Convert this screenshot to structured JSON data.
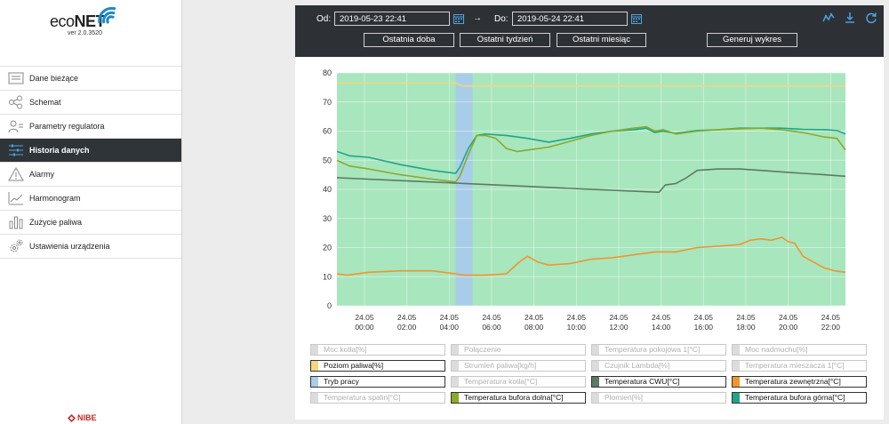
{
  "app": {
    "logo_prefix": "eco",
    "logo_suffix": "NET",
    "version": "ver 2.0.3520",
    "brand": "NIBE"
  },
  "sidebar": {
    "items": [
      {
        "label": "Dane bieżące",
        "icon": "list-icon",
        "active": false
      },
      {
        "label": "Schemat",
        "icon": "schema-icon",
        "active": false
      },
      {
        "label": "Parametry regulatora",
        "icon": "users-icon",
        "active": false
      },
      {
        "label": "Historia danych",
        "icon": "sliders-icon",
        "active": true
      },
      {
        "label": "Alarmy",
        "icon": "warning-icon",
        "active": false
      },
      {
        "label": "Harmonogram",
        "icon": "chart-line-icon",
        "active": false
      },
      {
        "label": "Zużycie paliwa",
        "icon": "bar-chart-icon",
        "active": false
      },
      {
        "label": "Ustawienia urządzenia",
        "icon": "gears-icon",
        "active": false
      }
    ]
  },
  "toolbar": {
    "from_label": "Od:",
    "from_value": "2019-05-23 22:41",
    "arrow": "→",
    "to_label": "Do:",
    "to_value": "2019-05-24 22:41",
    "btn_day": "Ostatnia doba",
    "btn_week": "Ostatni tydzień",
    "btn_month": "Ostatni miesiąc",
    "btn_generate": "Generuj wykres"
  },
  "legend": [
    {
      "label": "Moc kotła[%]",
      "on": false,
      "color": "#dcdcdc"
    },
    {
      "label": "Połączenie",
      "on": false,
      "color": "#dcdcdc"
    },
    {
      "label": "Temperatura pokojowa 1[°C]",
      "on": false,
      "color": "#dcdcdc"
    },
    {
      "label": "Moc nadmuchu[%]",
      "on": false,
      "color": "#dcdcdc"
    },
    {
      "label": "Poziom paliwa[%]",
      "on": true,
      "color": "#f5d67a"
    },
    {
      "label": "Strumień paliwa[kg/h]",
      "on": false,
      "color": "#dcdcdc"
    },
    {
      "label": "Czujnik Lambda[%]",
      "on": false,
      "color": "#dcdcdc"
    },
    {
      "label": "Temperatura mieszacza 1[°C]",
      "on": false,
      "color": "#dcdcdc"
    },
    {
      "label": "Tryb pracy",
      "on": true,
      "color": "#a8cde8"
    },
    {
      "label": "Temperatura kotła[°C]",
      "on": false,
      "color": "#dcdcdc"
    },
    {
      "label": "Temperatura CWU[°C]",
      "on": true,
      "color": "#5d7a63"
    },
    {
      "label": "Temperatura zewnętrzna[°C]",
      "on": true,
      "color": "#f0952c"
    },
    {
      "label": "Temperatura spalin[°C]",
      "on": false,
      "color": "#dcdcdc"
    },
    {
      "label": "Temperatura bufora dolna[°C]",
      "on": true,
      "color": "#8aaa2a"
    },
    {
      "label": "Płomień[%]",
      "on": false,
      "color": "#dcdcdc"
    },
    {
      "label": "Temperatura bufora górna[°C]",
      "on": true,
      "color": "#1fa58a"
    }
  ],
  "chart_data": {
    "type": "line",
    "x_unit": "hours since 2019-05-23 22:41",
    "xlim": [
      0,
      24
    ],
    "ylim": [
      0,
      80
    ],
    "y_ticks": [
      0,
      10,
      20,
      30,
      40,
      50,
      60,
      70,
      80
    ],
    "x_ticks": [
      {
        "x": 1.3,
        "l1": "24.05",
        "l2": "00:00"
      },
      {
        "x": 3.3,
        "l1": "24.05",
        "l2": "02:00"
      },
      {
        "x": 5.3,
        "l1": "24.05",
        "l2": "04:00"
      },
      {
        "x": 7.3,
        "l1": "24.05",
        "l2": "06:00"
      },
      {
        "x": 9.3,
        "l1": "24.05",
        "l2": "08:00"
      },
      {
        "x": 11.3,
        "l1": "24.05",
        "l2": "10:00"
      },
      {
        "x": 13.3,
        "l1": "24.05",
        "l2": "12:00"
      },
      {
        "x": 15.3,
        "l1": "24.05",
        "l2": "14:00"
      },
      {
        "x": 17.3,
        "l1": "24.05",
        "l2": "16:00"
      },
      {
        "x": 19.3,
        "l1": "24.05",
        "l2": "18:00"
      },
      {
        "x": 21.3,
        "l1": "24.05",
        "l2": "20:00"
      },
      {
        "x": 23.3,
        "l1": "24.05",
        "l2": "22:00"
      }
    ],
    "areas": [
      {
        "name": "Tryb pracy",
        "color": "#a8e6bd",
        "x0": 0,
        "x1": 24
      },
      {
        "name": "Tryb pracy",
        "color": "#a8cde8",
        "x0": 5.6,
        "x1": 6.4
      }
    ],
    "series": [
      {
        "name": "Poziom paliwa[%]",
        "color": "#f5d67a",
        "x": [
          0,
          5.6,
          5.9,
          24
        ],
        "y": [
          76.5,
          76.5,
          75.5,
          75.5
        ]
      },
      {
        "name": "Temperatura bufora górna[°C]",
        "color": "#1fa58a",
        "x": [
          0,
          0.6,
          1.5,
          3.0,
          4.5,
          5.6,
          5.8,
          6.2,
          6.6,
          7.0,
          8.0,
          9.0,
          10.0,
          11.0,
          12.0,
          13.0,
          14.0,
          14.6,
          15.0,
          15.4,
          16.0,
          17.0,
          18.0,
          19.0,
          20.0,
          21.0,
          22.0,
          23.0,
          23.6,
          24.0
        ],
        "y": [
          53,
          51.5,
          51,
          48.5,
          46.5,
          45.5,
          47.5,
          54,
          58.5,
          59,
          58.5,
          57.5,
          56.2,
          57.5,
          59,
          60,
          60.5,
          61,
          59.5,
          60,
          59.2,
          60.2,
          60.5,
          61,
          61,
          61,
          60.6,
          60.5,
          60.2,
          59
        ]
      },
      {
        "name": "Temperatura bufora dolna[°C]",
        "color": "#8aaa2a",
        "x": [
          0,
          0.6,
          1.5,
          3.0,
          4.5,
          5.6,
          5.8,
          6.2,
          6.6,
          7.0,
          7.5,
          8.0,
          8.5,
          9.0,
          10.0,
          11.0,
          12.0,
          13.0,
          14.0,
          14.6,
          15.0,
          15.4,
          16.0,
          17.0,
          18.0,
          19.0,
          20.0,
          21.0,
          22.0,
          23.0,
          23.6,
          24.0
        ],
        "y": [
          50,
          48,
          47,
          45,
          43.5,
          42.5,
          44.5,
          52,
          58.5,
          58.5,
          57.5,
          54,
          53,
          53.5,
          54.5,
          56.5,
          58.5,
          60,
          61,
          61.5,
          60,
          60.5,
          59,
          60,
          60.5,
          60.8,
          61,
          60.5,
          59.5,
          58,
          57.5,
          53.5
        ]
      },
      {
        "name": "Temperatura CWU[°C]",
        "color": "#5d7a63",
        "x": [
          0,
          3,
          6,
          9,
          12,
          15.2,
          15.5,
          16.0,
          16.5,
          17.0,
          18,
          19,
          20,
          21,
          22,
          23,
          24
        ],
        "y": [
          44,
          43,
          42,
          41,
          40,
          39,
          41.5,
          42,
          44,
          46.5,
          47,
          47,
          46.5,
          46,
          45.5,
          45,
          44.5
        ]
      },
      {
        "name": "Temperatura zewnętrzna[°C]",
        "color": "#f0952c",
        "x": [
          0,
          0.5,
          1.5,
          3,
          4.5,
          5.6,
          6,
          7,
          8,
          8.6,
          9,
          9.5,
          10,
          11,
          12,
          13,
          14,
          15,
          16,
          17,
          18,
          19,
          19.5,
          20,
          20.5,
          21,
          21.3,
          21.6,
          22,
          22.5,
          23,
          23.5,
          24
        ],
        "y": [
          11,
          10.5,
          11.5,
          12,
          12,
          11,
          10.5,
          10.5,
          11,
          15,
          17,
          15,
          14,
          14.5,
          16,
          16.5,
          17.5,
          18.5,
          18.5,
          20,
          20.5,
          21,
          22.5,
          23,
          22.5,
          23.5,
          22,
          21.5,
          17,
          15,
          13,
          12,
          11.5
        ]
      }
    ]
  }
}
